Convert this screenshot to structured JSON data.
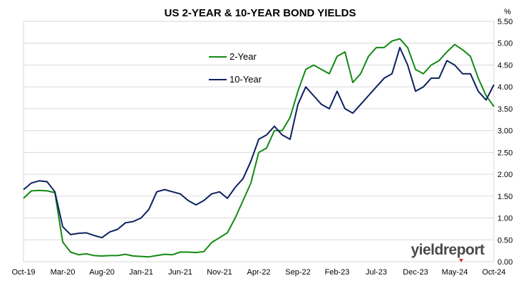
{
  "chart_data": {
    "type": "line",
    "title": "US 2-YEAR & 10-YEAR BOND YIELDS",
    "y_unit_label": "%",
    "xlabel": "",
    "ylabel": "",
    "ylim": [
      0,
      5.5
    ],
    "y_ticks": [
      "0.00",
      "0.50",
      "1.00",
      "1.50",
      "2.00",
      "2.50",
      "3.00",
      "3.50",
      "4.00",
      "4.50",
      "5.00",
      "5.50"
    ],
    "x_tick_labels": [
      "Oct-19",
      "Mar-20",
      "Aug-20",
      "Jan-21",
      "Jun-21",
      "Nov-21",
      "Apr-22",
      "Sep-22",
      "Feb-23",
      "Jul-23",
      "Dec-23",
      "May-24",
      "Oct-24"
    ],
    "grid": "horizontal",
    "legend_placement": "upper-middle",
    "watermark_text": "yieldreport",
    "colors": {
      "two_year": "#138a13",
      "ten_year": "#0d2160",
      "grid": "#d9d9d9",
      "axis_text": "#000000"
    },
    "x": [
      "2019-10-01",
      "2019-11-01",
      "2019-12-01",
      "2020-01-01",
      "2020-02-01",
      "2020-03-01",
      "2020-04-01",
      "2020-05-01",
      "2020-06-01",
      "2020-07-01",
      "2020-08-01",
      "2020-09-01",
      "2020-10-01",
      "2020-11-01",
      "2020-12-01",
      "2021-01-01",
      "2021-02-01",
      "2021-03-01",
      "2021-04-01",
      "2021-05-01",
      "2021-06-01",
      "2021-07-01",
      "2021-08-01",
      "2021-09-01",
      "2021-10-01",
      "2021-11-01",
      "2021-12-01",
      "2022-01-01",
      "2022-02-01",
      "2022-03-01",
      "2022-04-01",
      "2022-05-01",
      "2022-06-01",
      "2022-07-01",
      "2022-08-01",
      "2022-09-01",
      "2022-10-01",
      "2022-11-01",
      "2022-12-01",
      "2023-01-01",
      "2023-02-01",
      "2023-03-01",
      "2023-04-01",
      "2023-05-01",
      "2023-06-01",
      "2023-07-01",
      "2023-08-01",
      "2023-09-01",
      "2023-10-01",
      "2023-11-01",
      "2023-12-01",
      "2024-01-01",
      "2024-02-01",
      "2024-03-01",
      "2024-04-01",
      "2024-05-01",
      "2024-06-01",
      "2024-07-01",
      "2024-08-01",
      "2024-09-01",
      "2024-10-01"
    ],
    "series": [
      {
        "name": "2-Year",
        "color": "#138a13",
        "values": [
          1.45,
          1.62,
          1.63,
          1.62,
          1.58,
          0.45,
          0.22,
          0.16,
          0.18,
          0.14,
          0.13,
          0.14,
          0.14,
          0.17,
          0.13,
          0.12,
          0.11,
          0.14,
          0.17,
          0.16,
          0.22,
          0.22,
          0.21,
          0.23,
          0.44,
          0.55,
          0.66,
          1.0,
          1.4,
          1.8,
          2.5,
          2.6,
          3.0,
          3.0,
          3.3,
          3.9,
          4.4,
          4.5,
          4.4,
          4.3,
          4.7,
          4.8,
          4.1,
          4.3,
          4.7,
          4.9,
          4.9,
          5.05,
          5.1,
          4.9,
          4.4,
          4.3,
          4.5,
          4.6,
          4.8,
          4.97,
          4.85,
          4.7,
          4.2,
          3.8,
          3.55
        ]
      },
      {
        "name": "10-Year",
        "color": "#0d2160",
        "values": [
          1.65,
          1.8,
          1.85,
          1.83,
          1.6,
          0.8,
          0.62,
          0.65,
          0.66,
          0.6,
          0.55,
          0.68,
          0.74,
          0.89,
          0.92,
          1.0,
          1.2,
          1.6,
          1.65,
          1.6,
          1.55,
          1.4,
          1.3,
          1.4,
          1.55,
          1.6,
          1.45,
          1.7,
          1.9,
          2.3,
          2.8,
          2.9,
          3.1,
          2.9,
          2.8,
          3.6,
          4.0,
          3.8,
          3.6,
          3.5,
          3.9,
          3.5,
          3.4,
          3.6,
          3.8,
          4.0,
          4.2,
          4.3,
          4.9,
          4.5,
          3.9,
          4.0,
          4.2,
          4.2,
          4.6,
          4.5,
          4.3,
          4.3,
          3.9,
          3.7,
          4.05
        ]
      }
    ]
  }
}
